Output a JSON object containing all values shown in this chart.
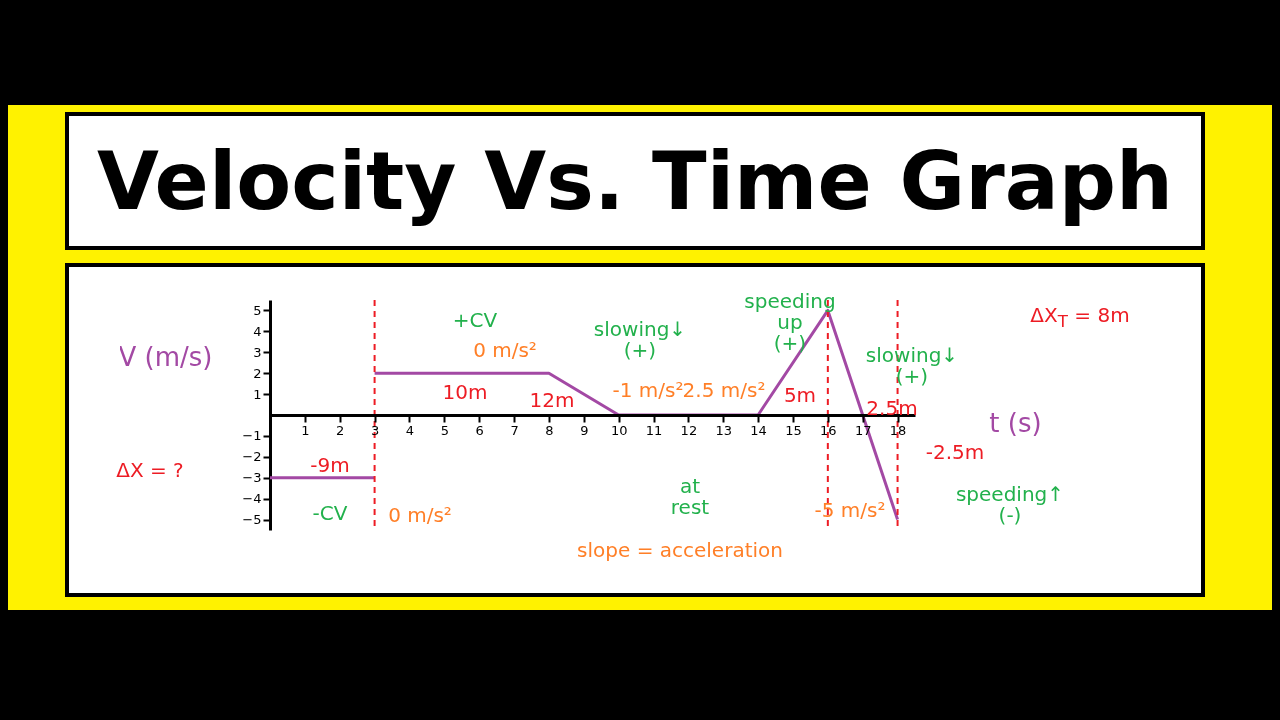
{
  "chart_data": {
    "type": "line",
    "title": "Velocity Vs. Time Graph",
    "xlabel": "t (s)",
    "ylabel": "V (m/s)",
    "xlim": [
      0,
      18.5
    ],
    "ylim": [
      -5.5,
      5.5
    ],
    "xticks": [
      1,
      2,
      3,
      4,
      5,
      6,
      7,
      8,
      9,
      10,
      11,
      12,
      13,
      14,
      15,
      16,
      17,
      18
    ],
    "yticks": [
      -5,
      -4,
      -3,
      -2,
      -1,
      1,
      2,
      3,
      4,
      5
    ],
    "grid": false,
    "marker": "none",
    "series": [
      {
        "color": "#a349a4",
        "x": [
          0,
          3
        ],
        "values": [
          -3,
          -3
        ]
      },
      {
        "color": "#a349a4",
        "x": [
          3,
          8,
          10,
          14,
          16,
          18
        ],
        "values": [
          2,
          2,
          0,
          0,
          5,
          -5
        ]
      }
    ],
    "ref_lines": [
      {
        "axis": "x",
        "value": 3,
        "color": "#ed1c24",
        "line_style": "dashed"
      },
      {
        "axis": "x",
        "value": 16,
        "color": "#ed1c24",
        "line_style": "dashed"
      },
      {
        "axis": "x",
        "value": 18,
        "color": "#ed1c24",
        "line_style": "dashed"
      }
    ],
    "annotations": [
      "+CV",
      "0 m/s²",
      "10m",
      "12m",
      "slowing↓\n(+)",
      "-1 m/s²",
      "speeding\nup\n(+)",
      "2.5 m/s²",
      "5m",
      "slowing↓\n(+)",
      "2.5m",
      "-2.5m",
      "at\nrest",
      "-9m",
      "-CV",
      "0 m/s²",
      "-5 m/s²",
      "ΔX = ?",
      "ΔX$_{T}$ = 8m",
      "speeding↑\n(-)",
      "slope = acceleration"
    ]
  }
}
